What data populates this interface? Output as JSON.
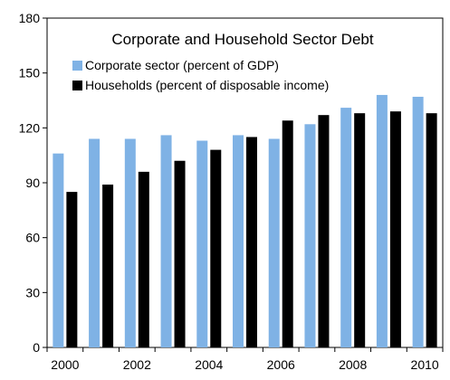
{
  "chart_data": {
    "type": "bar",
    "title": "Corporate and Household Sector Debt",
    "xlabel": "",
    "ylabel": "",
    "ylim": [
      0,
      180
    ],
    "yticks": [
      0,
      30,
      60,
      90,
      120,
      150,
      180
    ],
    "categories": [
      "2000",
      "2001",
      "2002",
      "2003",
      "2004",
      "2005",
      "2006",
      "2007",
      "2008",
      "2009",
      "2010"
    ],
    "xtick_labels": [
      "2000",
      "",
      "2002",
      "",
      "2004",
      "",
      "2006",
      "",
      "2008",
      "",
      "2010"
    ],
    "legend_position": "top-left",
    "grid": false,
    "series": [
      {
        "name": "Corporate sector (percent of GDP)",
        "color": "#7fb2e5",
        "values": [
          106,
          114,
          114,
          116,
          113,
          116,
          114,
          122,
          131,
          138,
          137
        ]
      },
      {
        "name": "Households (percent of disposable income)",
        "color": "#000000",
        "values": [
          85,
          89,
          96,
          102,
          108,
          115,
          124,
          127,
          128,
          129,
          128
        ]
      }
    ]
  }
}
